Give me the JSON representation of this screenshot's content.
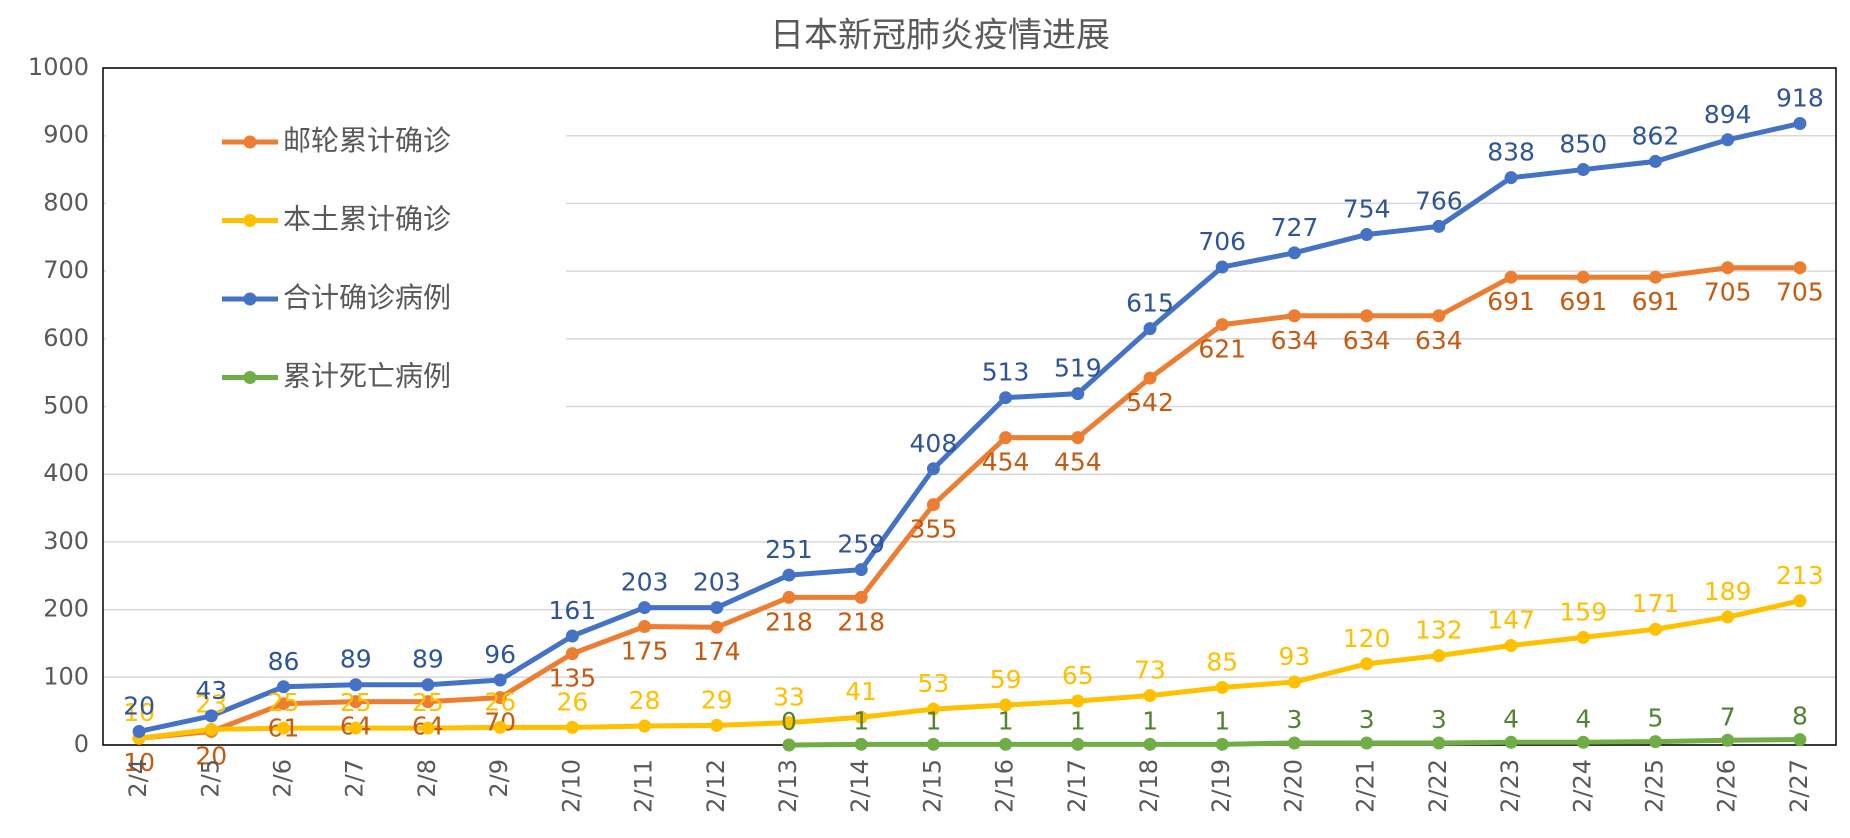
{
  "chart_data": {
    "type": "line",
    "title": "日本新冠肺炎疫情进展",
    "categories": [
      "2/4",
      "2/5",
      "2/6",
      "2/7",
      "2/8",
      "2/9",
      "2/10",
      "2/11",
      "2/12",
      "2/13",
      "2/14",
      "2/15",
      "2/16",
      "2/17",
      "2/18",
      "2/19",
      "2/20",
      "2/21",
      "2/22",
      "2/23",
      "2/24",
      "2/25",
      "2/26",
      "2/27"
    ],
    "series": [
      {
        "name": "邮轮累计确诊",
        "color": "#ED7D31",
        "label_color": "#C55A11",
        "values": [
          10,
          20,
          61,
          64,
          64,
          70,
          135,
          175,
          174,
          218,
          218,
          355,
          454,
          454,
          542,
          621,
          634,
          634,
          634,
          691,
          691,
          691,
          705,
          705
        ]
      },
      {
        "name": "本土累计确诊",
        "color": "#FFC000",
        "label_color": "#FFC000",
        "values": [
          10,
          23,
          25,
          25,
          25,
          26,
          26,
          28,
          29,
          33,
          41,
          53,
          59,
          65,
          73,
          85,
          93,
          120,
          132,
          147,
          159,
          171,
          189,
          213
        ]
      },
      {
        "name": "合计确诊病例",
        "color": "#4472C4",
        "label_color": "#2F5597",
        "values": [
          20,
          43,
          86,
          89,
          89,
          96,
          161,
          203,
          203,
          251,
          259,
          408,
          513,
          519,
          615,
          706,
          727,
          754,
          766,
          838,
          850,
          862,
          894,
          918
        ]
      },
      {
        "name": "累计死亡病例",
        "color": "#70AD47",
        "label_color": "#548235",
        "values": [
          null,
          null,
          null,
          null,
          null,
          null,
          null,
          null,
          null,
          0,
          1,
          1,
          1,
          1,
          1,
          1,
          3,
          3,
          3,
          4,
          4,
          5,
          7,
          8
        ]
      }
    ],
    "ylim": [
      0,
      1000
    ],
    "yticks": [
      0,
      100,
      200,
      300,
      400,
      500,
      600,
      700,
      800,
      900,
      1000
    ],
    "grid": true
  }
}
